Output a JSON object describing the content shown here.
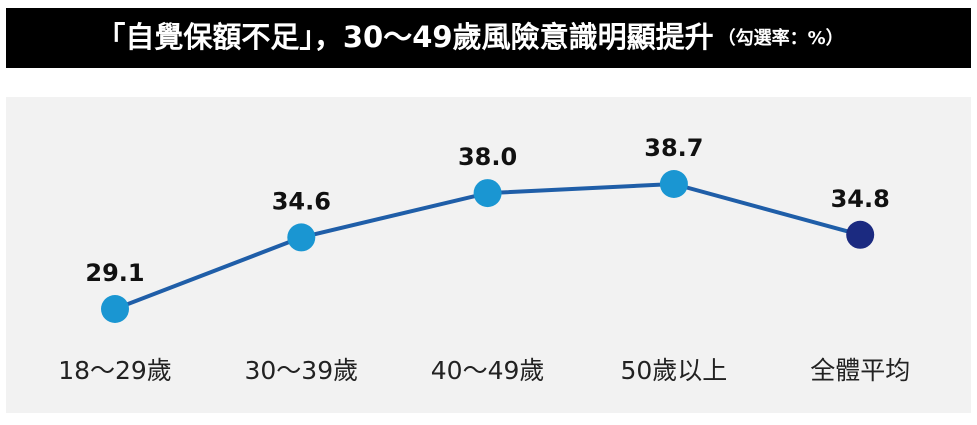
{
  "chart_data": {
    "type": "line",
    "title": "「自覺保額不足」，30～49歲風險意識明顯提升",
    "subtitle": "（勾選率：%）",
    "categories": [
      "18～29歲",
      "30～39歲",
      "40～49歲",
      "50歲以上",
      "全體平均"
    ],
    "series": [
      {
        "color": "#1f5ea8",
        "marker_colors": [
          "#1a96d2",
          "#1a96d2",
          "#1a96d2",
          "#1a96d2",
          "#1b2a80"
        ],
        "values": [
          29.1,
          34.6,
          38.0,
          38.7,
          34.8
        ],
        "value_labels": [
          "29.1",
          "34.6",
          "38.0",
          "38.7",
          "34.8"
        ]
      }
    ]
  }
}
